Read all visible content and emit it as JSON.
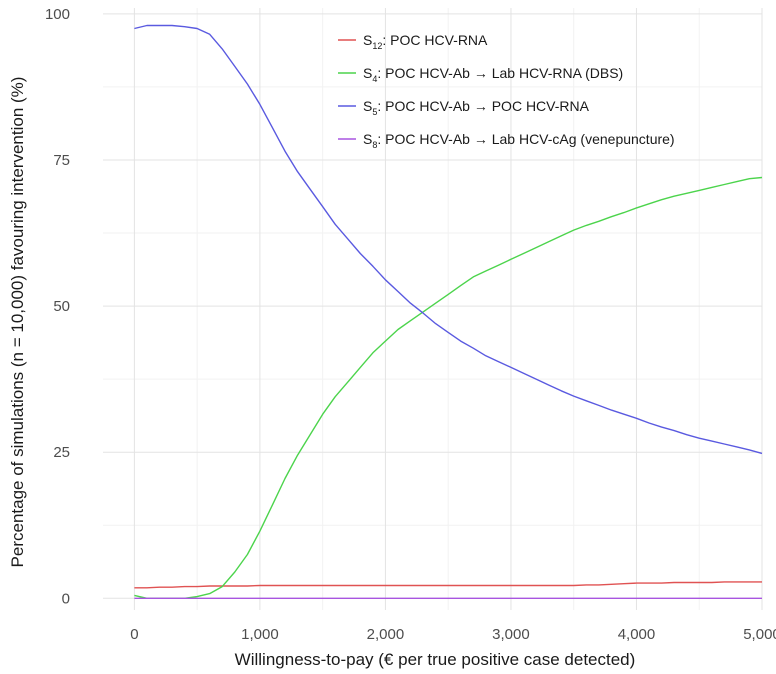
{
  "chart_data": {
    "type": "line",
    "xlabel": "Willingness-to-pay (€ per true positive case detected)",
    "ylabel": "Percentage of simulations (n = 10,000) favouring intervention (%)",
    "xlim": [
      -250,
      5000
    ],
    "ylim": [
      -2,
      101
    ],
    "x_ticks": [
      0,
      1000,
      2000,
      3000,
      4000,
      5000
    ],
    "x_tick_labels": [
      "0",
      "1,000",
      "2,000",
      "3,000",
      "4,000",
      "5,000"
    ],
    "y_ticks": [
      0,
      25,
      50,
      75,
      100
    ],
    "y_tick_labels": [
      "0",
      "25",
      "50",
      "75",
      "100"
    ],
    "grid": true,
    "legend_position": "top-right",
    "x": [
      0,
      100,
      200,
      300,
      400,
      500,
      600,
      700,
      800,
      900,
      1000,
      1100,
      1200,
      1300,
      1400,
      1500,
      1600,
      1700,
      1800,
      1900,
      2000,
      2100,
      2200,
      2300,
      2400,
      2500,
      2600,
      2700,
      2800,
      2900,
      3000,
      3100,
      3200,
      3300,
      3400,
      3500,
      3600,
      3700,
      3800,
      3900,
      4000,
      4100,
      4200,
      4300,
      4400,
      4500,
      4600,
      4700,
      4800,
      4900,
      5000
    ],
    "series": [
      {
        "name_main": "S",
        "name_sub": "12",
        "name_rest": ": POC HCV-RNA",
        "color": "#e05252",
        "values": [
          1.8,
          1.8,
          1.9,
          1.9,
          2.0,
          2.0,
          2.1,
          2.1,
          2.1,
          2.1,
          2.2,
          2.2,
          2.2,
          2.2,
          2.2,
          2.2,
          2.2,
          2.2,
          2.2,
          2.2,
          2.2,
          2.2,
          2.2,
          2.2,
          2.2,
          2.2,
          2.2,
          2.2,
          2.2,
          2.2,
          2.2,
          2.2,
          2.2,
          2.2,
          2.2,
          2.2,
          2.3,
          2.3,
          2.4,
          2.5,
          2.6,
          2.6,
          2.6,
          2.7,
          2.7,
          2.7,
          2.7,
          2.8,
          2.8,
          2.8,
          2.8
        ]
      },
      {
        "name_main": "S",
        "name_sub": "4",
        "name_rest": ": POC HCV-Ab → Lab HCV-RNA (DBS)",
        "color": "#4cd44c",
        "values": [
          0.5,
          0.0,
          0.0,
          0.0,
          0.0,
          0.3,
          0.8,
          2.0,
          4.5,
          7.5,
          11.5,
          16.0,
          20.5,
          24.5,
          28.0,
          31.5,
          34.5,
          37.0,
          39.5,
          42.0,
          44.0,
          46.0,
          47.5,
          49.0,
          50.5,
          52.0,
          53.5,
          55.0,
          56.0,
          57.0,
          58.0,
          59.0,
          60.0,
          61.0,
          62.0,
          63.0,
          63.8,
          64.5,
          65.3,
          66.0,
          66.8,
          67.5,
          68.2,
          68.8,
          69.3,
          69.8,
          70.3,
          70.8,
          71.3,
          71.8,
          72.0
        ]
      },
      {
        "name_main": "S",
        "name_sub": "5",
        "name_rest": ": POC HCV-Ab → POC HCV-RNA",
        "color": "#5a5ae0",
        "values": [
          97.5,
          98.0,
          98.0,
          98.0,
          97.8,
          97.5,
          96.5,
          94.0,
          91.0,
          88.0,
          84.5,
          80.5,
          76.5,
          73.0,
          70.0,
          67.0,
          64.0,
          61.5,
          59.0,
          56.8,
          54.5,
          52.5,
          50.5,
          48.8,
          47.0,
          45.5,
          44.0,
          42.8,
          41.5,
          40.5,
          39.5,
          38.5,
          37.5,
          36.5,
          35.5,
          34.6,
          33.8,
          33.0,
          32.2,
          31.5,
          30.8,
          30.0,
          29.3,
          28.7,
          28.0,
          27.4,
          26.9,
          26.4,
          25.9,
          25.4,
          24.8
        ]
      },
      {
        "name_main": "S",
        "name_sub": "8",
        "name_rest": ": POC HCV-Ab → Lab HCV-cAg (venepuncture)",
        "color": "#a855e0",
        "values": [
          0.0,
          0.0,
          0.0,
          0.0,
          0.0,
          0.0,
          0.0,
          0.0,
          0.0,
          0.0,
          0.0,
          0.0,
          0.0,
          0.0,
          0.0,
          0.0,
          0.0,
          0.0,
          0.0,
          0.0,
          0.0,
          0.0,
          0.0,
          0.0,
          0.0,
          0.0,
          0.0,
          0.0,
          0.0,
          0.0,
          0.0,
          0.0,
          0.0,
          0.0,
          0.0,
          0.0,
          0.0,
          0.0,
          0.0,
          0.0,
          0.0,
          0.0,
          0.0,
          0.0,
          0.0,
          0.0,
          0.0,
          0.0,
          0.0,
          0.0,
          0.0
        ]
      }
    ]
  }
}
